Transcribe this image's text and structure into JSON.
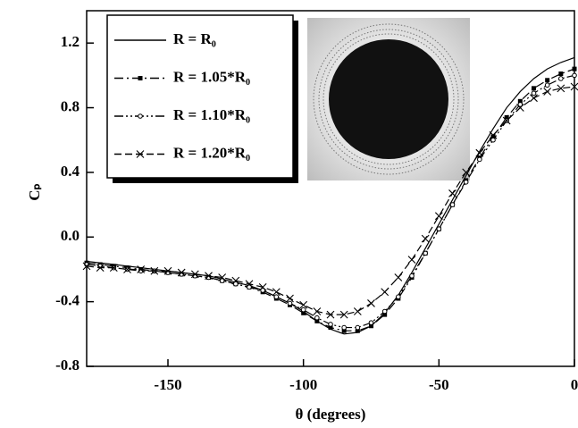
{
  "chart_data": {
    "type": "line",
    "x_label": "θ (degrees)",
    "y_label": "Cₚ",
    "xlim": [
      -180,
      0
    ],
    "ylim": [
      -0.8,
      1.4
    ],
    "xticks": [
      -150,
      -100,
      -50,
      0
    ],
    "yticks": [
      -0.8,
      -0.4,
      {
        "value": 0,
        "label": "0.0"
      },
      0.4,
      0.8,
      1.2
    ],
    "legend": "upper-left",
    "x": [
      -180,
      -175,
      -170,
      -165,
      -160,
      -155,
      -150,
      -145,
      -140,
      -135,
      -130,
      -125,
      -120,
      -115,
      -110,
      -105,
      -100,
      -95,
      -90,
      -85,
      -80,
      -75,
      -70,
      -65,
      -60,
      -55,
      -50,
      -45,
      -40,
      -35,
      -30,
      -25,
      -20,
      -15,
      -10,
      -5,
      0
    ],
    "series": [
      {
        "name": "R = R₀",
        "color": "#000000",
        "dash": "solid",
        "marker": "none",
        "values": [
          -0.15,
          -0.16,
          -0.17,
          -0.18,
          -0.19,
          -0.2,
          -0.21,
          -0.22,
          -0.23,
          -0.24,
          -0.26,
          -0.28,
          -0.3,
          -0.33,
          -0.37,
          -0.41,
          -0.46,
          -0.52,
          -0.57,
          -0.6,
          -0.59,
          -0.55,
          -0.47,
          -0.36,
          -0.22,
          -0.07,
          0.08,
          0.23,
          0.38,
          0.53,
          0.67,
          0.8,
          0.9,
          0.98,
          1.04,
          1.08,
          1.11
        ]
      },
      {
        "name": "R = 1.05*R₀",
        "color": "#000000",
        "dash": "dash-dot",
        "marker": "square",
        "values": [
          -0.16,
          -0.17,
          -0.18,
          -0.19,
          -0.2,
          -0.21,
          -0.22,
          -0.23,
          -0.24,
          -0.25,
          -0.27,
          -0.29,
          -0.31,
          -0.34,
          -0.38,
          -0.42,
          -0.47,
          -0.52,
          -0.56,
          -0.58,
          -0.58,
          -0.55,
          -0.48,
          -0.38,
          -0.25,
          -0.1,
          0.05,
          0.2,
          0.35,
          0.49,
          0.62,
          0.74,
          0.84,
          0.92,
          0.97,
          1.01,
          1.04
        ]
      },
      {
        "name": "R = 1.10*R₀",
        "color": "#000000",
        "dash": "dash-dot-dot",
        "marker": "circle",
        "values": [
          -0.17,
          -0.18,
          -0.19,
          -0.2,
          -0.21,
          -0.21,
          -0.22,
          -0.23,
          -0.24,
          -0.25,
          -0.27,
          -0.29,
          -0.31,
          -0.33,
          -0.37,
          -0.41,
          -0.45,
          -0.5,
          -0.54,
          -0.56,
          -0.56,
          -0.53,
          -0.46,
          -0.37,
          -0.24,
          -0.1,
          0.05,
          0.2,
          0.34,
          0.48,
          0.6,
          0.72,
          0.82,
          0.89,
          0.94,
          0.98,
          1.0
        ]
      },
      {
        "name": "R = 1.20*R₀",
        "color": "#000000",
        "dash": "dashed",
        "marker": "cross",
        "values": [
          -0.18,
          -0.19,
          -0.19,
          -0.2,
          -0.2,
          -0.21,
          -0.21,
          -0.22,
          -0.23,
          -0.24,
          -0.25,
          -0.27,
          -0.29,
          -0.31,
          -0.34,
          -0.38,
          -0.42,
          -0.46,
          -0.48,
          -0.48,
          -0.46,
          -0.41,
          -0.34,
          -0.25,
          -0.14,
          -0.01,
          0.13,
          0.27,
          0.4,
          0.52,
          0.63,
          0.72,
          0.8,
          0.86,
          0.9,
          0.92,
          0.93
        ]
      }
    ]
  }
}
